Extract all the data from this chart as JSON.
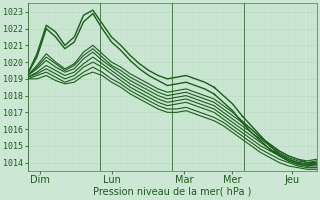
{
  "xlabel": "Pression niveau de la mer( hPa )",
  "ylim": [
    1013.5,
    1023.5
  ],
  "xlim": [
    0,
    96
  ],
  "yticks": [
    1014,
    1015,
    1016,
    1017,
    1018,
    1019,
    1020,
    1021,
    1022,
    1023
  ],
  "xtick_positions": [
    4,
    28,
    52,
    68,
    88
  ],
  "xtick_labels": [
    "Dim",
    "Lun",
    "Mar",
    "Mer",
    "Jeu"
  ],
  "bg_color": "#cce8d4",
  "grid_minor_color": "#b8d8c0",
  "grid_major_color": "#90b898",
  "line_colors": [
    "#1a5c1a",
    "#1a5c1a",
    "#1a5c1a",
    "#1a5c1a",
    "#1a5c1a",
    "#1a5c1a",
    "#1a5c1a",
    "#1a5c1a",
    "#1a5c1a"
  ],
  "series": [
    [
      1019.3,
      1020.5,
      1022.2,
      1021.8,
      1021.0,
      1021.5,
      1022.8,
      1023.1,
      1022.3,
      1021.5,
      1021.0,
      1020.4,
      1019.9,
      1019.5,
      1019.2,
      1019.0,
      1019.1,
      1019.2,
      1019.0,
      1018.8,
      1018.5,
      1018.0,
      1017.5,
      1016.8,
      1016.2,
      1015.6,
      1015.0,
      1014.5,
      1014.2,
      1014.0,
      1013.9,
      1014.0
    ],
    [
      1019.3,
      1020.3,
      1022.0,
      1021.5,
      1020.8,
      1021.2,
      1022.4,
      1022.9,
      1022.0,
      1021.2,
      1020.7,
      1020.1,
      1019.6,
      1019.2,
      1018.9,
      1018.6,
      1018.7,
      1018.8,
      1018.6,
      1018.4,
      1018.1,
      1017.6,
      1017.1,
      1016.4,
      1015.8,
      1015.3,
      1014.8,
      1014.4,
      1014.1,
      1013.9,
      1013.8,
      1013.9
    ],
    [
      1019.2,
      1019.8,
      1020.5,
      1020.0,
      1019.6,
      1019.9,
      1020.6,
      1021.0,
      1020.5,
      1020.0,
      1019.7,
      1019.3,
      1019.0,
      1018.7,
      1018.4,
      1018.2,
      1018.3,
      1018.4,
      1018.2,
      1018.0,
      1017.8,
      1017.4,
      1017.0,
      1016.5,
      1016.0,
      1015.5,
      1015.1,
      1014.7,
      1014.4,
      1014.2,
      1014.1,
      1014.2
    ],
    [
      1019.2,
      1019.7,
      1020.3,
      1019.9,
      1019.5,
      1019.8,
      1020.4,
      1020.8,
      1020.3,
      1019.8,
      1019.5,
      1019.1,
      1018.8,
      1018.5,
      1018.2,
      1018.0,
      1018.1,
      1018.2,
      1018.0,
      1017.8,
      1017.6,
      1017.2,
      1016.8,
      1016.4,
      1016.0,
      1015.5,
      1015.1,
      1014.7,
      1014.4,
      1014.2,
      1014.0,
      1014.1
    ],
    [
      1019.2,
      1019.6,
      1020.1,
      1019.7,
      1019.4,
      1019.6,
      1020.2,
      1020.6,
      1020.1,
      1019.7,
      1019.3,
      1018.9,
      1018.6,
      1018.3,
      1018.0,
      1017.8,
      1017.9,
      1018.0,
      1017.8,
      1017.6,
      1017.4,
      1017.0,
      1016.6,
      1016.2,
      1015.8,
      1015.4,
      1015.0,
      1014.6,
      1014.3,
      1014.1,
      1014.0,
      1014.0
    ],
    [
      1019.1,
      1019.4,
      1019.8,
      1019.5,
      1019.2,
      1019.4,
      1019.9,
      1020.3,
      1019.9,
      1019.5,
      1019.1,
      1018.7,
      1018.4,
      1018.1,
      1017.8,
      1017.6,
      1017.7,
      1017.8,
      1017.6,
      1017.4,
      1017.2,
      1016.8,
      1016.4,
      1016.0,
      1015.6,
      1015.2,
      1014.8,
      1014.5,
      1014.2,
      1014.0,
      1013.9,
      1013.9
    ],
    [
      1019.1,
      1019.3,
      1019.6,
      1019.3,
      1019.0,
      1019.2,
      1019.7,
      1020.0,
      1019.7,
      1019.3,
      1018.9,
      1018.5,
      1018.2,
      1017.9,
      1017.6,
      1017.4,
      1017.5,
      1017.6,
      1017.4,
      1017.2,
      1017.0,
      1016.6,
      1016.2,
      1015.8,
      1015.4,
      1015.0,
      1014.7,
      1014.4,
      1014.1,
      1013.9,
      1013.8,
      1013.8
    ],
    [
      1019.0,
      1019.2,
      1019.4,
      1019.1,
      1018.8,
      1019.0,
      1019.4,
      1019.7,
      1019.4,
      1019.0,
      1018.7,
      1018.3,
      1018.0,
      1017.7,
      1017.4,
      1017.2,
      1017.2,
      1017.3,
      1017.1,
      1016.9,
      1016.7,
      1016.4,
      1016.0,
      1015.6,
      1015.2,
      1014.8,
      1014.5,
      1014.2,
      1014.0,
      1013.8,
      1013.7,
      1013.7
    ],
    [
      1019.0,
      1019.0,
      1019.2,
      1018.9,
      1018.7,
      1018.8,
      1019.2,
      1019.4,
      1019.2,
      1018.8,
      1018.5,
      1018.1,
      1017.8,
      1017.5,
      1017.2,
      1017.0,
      1017.0,
      1017.1,
      1016.9,
      1016.7,
      1016.5,
      1016.2,
      1015.8,
      1015.4,
      1015.0,
      1014.6,
      1014.3,
      1014.0,
      1013.8,
      1013.7,
      1013.6,
      1013.6
    ]
  ],
  "marker_series": [
    0,
    1
  ],
  "vline_positions": [
    0,
    24,
    48,
    72,
    96
  ],
  "vline_color": "#4a7a4a",
  "figsize": [
    3.2,
    2.0
  ],
  "dpi": 100
}
